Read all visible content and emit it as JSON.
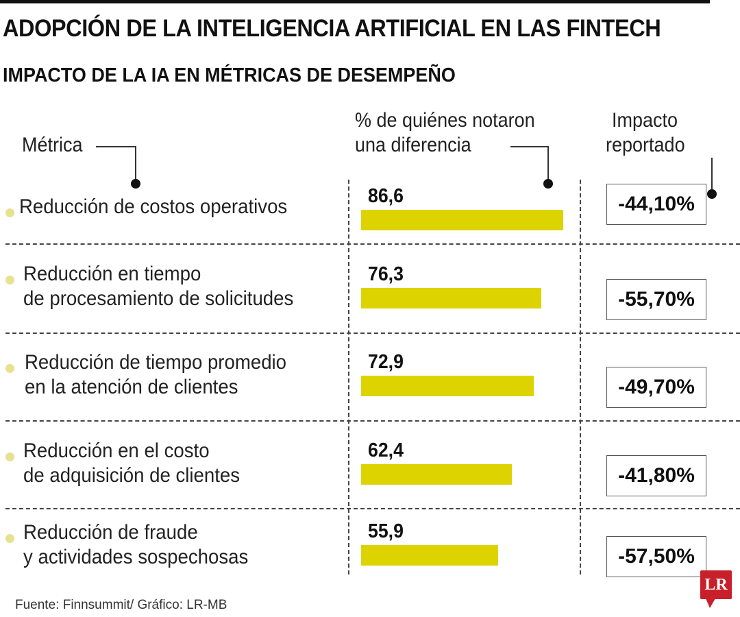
{
  "title": "ADOPCIÓN DE LA INTELIGENCIA ARTIFICIAL EN LAS FINTECH",
  "subtitle": "IMPACTO DE LA IA EN MÉTRICAS DE DESEMPEÑO",
  "headers": {
    "metric": "Métrica",
    "percent_line1": "% de quiénes notaron",
    "percent_line2": "una diferencia",
    "impact_line1": "Impacto",
    "impact_line2": "reportado"
  },
  "colors": {
    "bar": "#dcd300",
    "bullet": "#e6e290"
  },
  "chart_data": {
    "type": "bar",
    "orientation": "horizontal",
    "categories": [
      "Reducción de costos operativos",
      "Reducción en tiempo de procesamiento de solicitudes",
      "Reducción de tiempo promedio en la atención de clientes",
      "Reducción en el costo de adquisición de clientes",
      "Reducción de fraude y actividades sospechosas"
    ],
    "category_lines": [
      [
        "Reducción de costos operativos"
      ],
      [
        "Reducción en tiempo",
        "de procesamiento de solicitudes"
      ],
      [
        "Reducción de tiempo promedio",
        "en la atención de clientes"
      ],
      [
        "Reducción en el costo",
        "de adquisición de clientes"
      ],
      [
        "Reducción de fraude",
        "y actividades sospechosas"
      ]
    ],
    "values": [
      86.6,
      76.3,
      72.9,
      62.4,
      55.9
    ],
    "value_labels": [
      "86,6",
      "76,3",
      "72,9",
      "62,4",
      "55,9"
    ],
    "impact_labels": [
      "-44,10%",
      "-55,70%",
      "-49,70%",
      "-41,80%",
      "-57,50%"
    ],
    "impact_values": [
      -44.1,
      -55.7,
      -49.7,
      -41.8,
      -57.5
    ]
  },
  "source": "Fuente: Finnsummit/ Gráfico: LR-MB",
  "logo": "LR"
}
